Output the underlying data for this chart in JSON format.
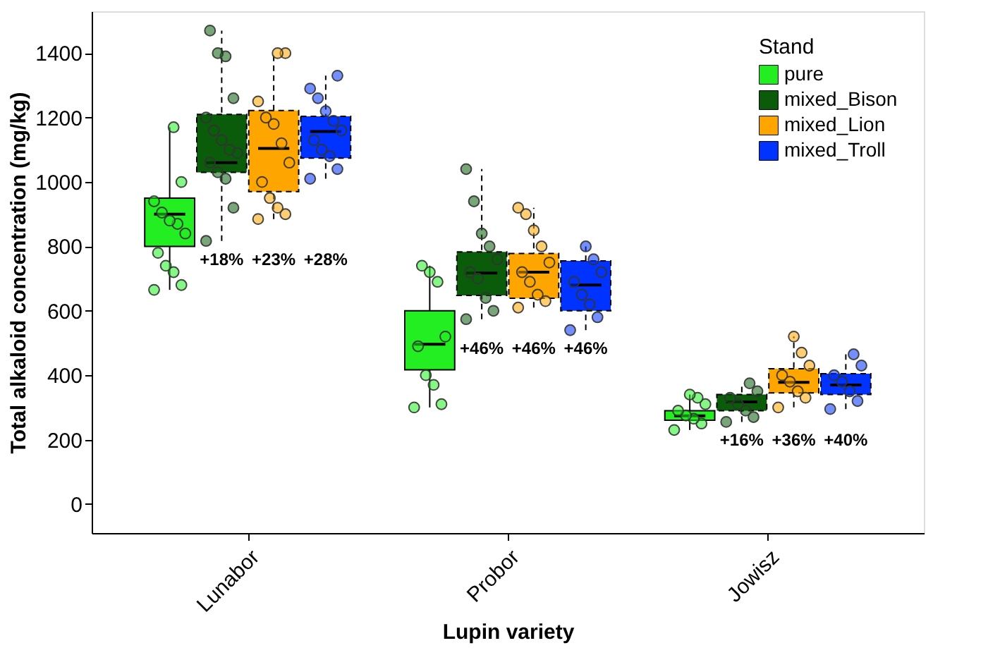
{
  "chart_data": {
    "type": "box",
    "xlabel": "Lupin variety",
    "ylabel": "Total alkaloid concentration (mg/kg)",
    "legend_title": "Stand",
    "legend": "top right",
    "grid": false,
    "categories": [
      "Lunabor",
      "Probor",
      "Jowisz"
    ],
    "ylim": [
      -90,
      1530
    ],
    "yticks": [
      0,
      200,
      400,
      600,
      800,
      1000,
      1200,
      1400
    ],
    "series": [
      {
        "name": "pure",
        "color": "#22ee22",
        "line_style": "solid",
        "boxes": [
          {
            "low": 665,
            "q1": 800,
            "median": 900,
            "q3": 950,
            "high": 1170
          },
          {
            "low": 300,
            "q1": 417,
            "median": 496,
            "q3": 600,
            "high": 740
          },
          {
            "low": 230,
            "q1": 260,
            "median": 274,
            "q3": 290,
            "high": 340
          }
        ]
      },
      {
        "name": "mixed_Bison",
        "color": "#0a5c0a",
        "line_style": "dashed",
        "boxes": [
          {
            "low": 817,
            "q1": 1030,
            "median": 1060,
            "q3": 1210,
            "high": 1470
          },
          {
            "low": 574,
            "q1": 648,
            "median": 717,
            "q3": 783,
            "high": 1040
          },
          {
            "low": 255,
            "q1": 290,
            "median": 317,
            "q3": 340,
            "high": 375
          }
        ]
      },
      {
        "name": "mixed_Lion",
        "color": "#ffa500",
        "line_style": "dashed",
        "boxes": [
          {
            "low": 885,
            "q1": 970,
            "median": 1104,
            "q3": 1222,
            "high": 1400
          },
          {
            "low": 610,
            "q1": 639,
            "median": 720,
            "q3": 778,
            "high": 920
          },
          {
            "low": 300,
            "q1": 345,
            "median": 378,
            "q3": 420,
            "high": 520
          }
        ]
      },
      {
        "name": "mixed_Troll",
        "color": "#0033ff",
        "line_style": "dashed",
        "boxes": [
          {
            "low": 1010,
            "q1": 1074,
            "median": 1157,
            "q3": 1204,
            "high": 1330
          },
          {
            "low": 540,
            "q1": 600,
            "median": 680,
            "q3": 755,
            "high": 800
          },
          {
            "low": 295,
            "q1": 340,
            "median": 370,
            "q3": 405,
            "high": 465
          }
        ]
      },
      {
        "type": "scatter",
        "color": "#22ee22",
        "x": [
          "Lunabor",
          "Lunabor",
          "Lunabor",
          "Lunabor",
          "Lunabor",
          "Lunabor",
          "Lunabor",
          "Lunabor",
          "Lunabor",
          "Lunabor",
          "Lunabor",
          "Lunabor",
          "Probor",
          "Probor",
          "Probor",
          "Probor",
          "Probor",
          "Probor",
          "Probor",
          "Probor",
          "Probor",
          "Jowisz",
          "Jowisz",
          "Jowisz",
          "Jowisz",
          "Jowisz",
          "Jowisz",
          "Jowisz",
          "Jowisz"
        ],
        "values": [
          665,
          680,
          720,
          740,
          780,
          840,
          870,
          880,
          905,
          940,
          1000,
          1170,
          300,
          310,
          370,
          400,
          490,
          520,
          690,
          720,
          740,
          230,
          250,
          265,
          275,
          290,
          310,
          330,
          340
        ]
      },
      {
        "type": "scatter",
        "color": "#0a5c0a",
        "x": [
          "Lunabor",
          "Lunabor",
          "Lunabor",
          "Lunabor",
          "Lunabor",
          "Lunabor",
          "Lunabor",
          "Lunabor",
          "Lunabor",
          "Lunabor",
          "Lunabor",
          "Lunabor",
          "Lunabor",
          "Lunabor",
          "Probor",
          "Probor",
          "Probor",
          "Probor",
          "Probor",
          "Probor",
          "Probor",
          "Probor",
          "Probor",
          "Probor",
          "Jowisz",
          "Jowisz",
          "Jowisz",
          "Jowisz",
          "Jowisz",
          "Jowisz",
          "Jowisz"
        ],
        "values": [
          817,
          920,
          1010,
          1030,
          1060,
          1090,
          1100,
          1130,
          1160,
          1200,
          1260,
          1390,
          1400,
          1470,
          574,
          600,
          640,
          700,
          720,
          760,
          800,
          840,
          940,
          1040,
          255,
          270,
          290,
          310,
          330,
          350,
          375
        ]
      },
      {
        "type": "scatter",
        "color": "#ffa500",
        "x": [
          "Lunabor",
          "Lunabor",
          "Lunabor",
          "Lunabor",
          "Lunabor",
          "Lunabor",
          "Lunabor",
          "Lunabor",
          "Lunabor",
          "Lunabor",
          "Lunabor",
          "Lunabor",
          "Probor",
          "Probor",
          "Probor",
          "Probor",
          "Probor",
          "Probor",
          "Probor",
          "Probor",
          "Probor",
          "Probor",
          "Jowisz",
          "Jowisz",
          "Jowisz",
          "Jowisz",
          "Jowisz",
          "Jowisz",
          "Jowisz",
          "Jowisz"
        ],
        "values": [
          885,
          900,
          920,
          950,
          1000,
          1060,
          1120,
          1180,
          1200,
          1250,
          1400,
          1400,
          610,
          630,
          650,
          690,
          720,
          750,
          800,
          850,
          900,
          920,
          300,
          330,
          350,
          380,
          400,
          430,
          470,
          520
        ]
      },
      {
        "type": "scatter",
        "color": "#0033ff",
        "x": [
          "Lunabor",
          "Lunabor",
          "Lunabor",
          "Lunabor",
          "Lunabor",
          "Lunabor",
          "Lunabor",
          "Lunabor",
          "Lunabor",
          "Lunabor",
          "Lunabor",
          "Probor",
          "Probor",
          "Probor",
          "Probor",
          "Probor",
          "Probor",
          "Probor",
          "Probor",
          "Jowisz",
          "Jowisz",
          "Jowisz",
          "Jowisz",
          "Jowisz",
          "Jowisz",
          "Jowisz"
        ],
        "values": [
          1010,
          1040,
          1080,
          1100,
          1130,
          1160,
          1190,
          1220,
          1260,
          1290,
          1330,
          540,
          580,
          620,
          650,
          690,
          720,
          760,
          800,
          295,
          320,
          350,
          380,
          400,
          430,
          465
        ]
      }
    ],
    "annotations": [
      "+18%",
      "+23%",
      "+28%",
      "+46%",
      "+46%",
      "+46%",
      "+16%",
      "+36%",
      "+40%"
    ]
  }
}
